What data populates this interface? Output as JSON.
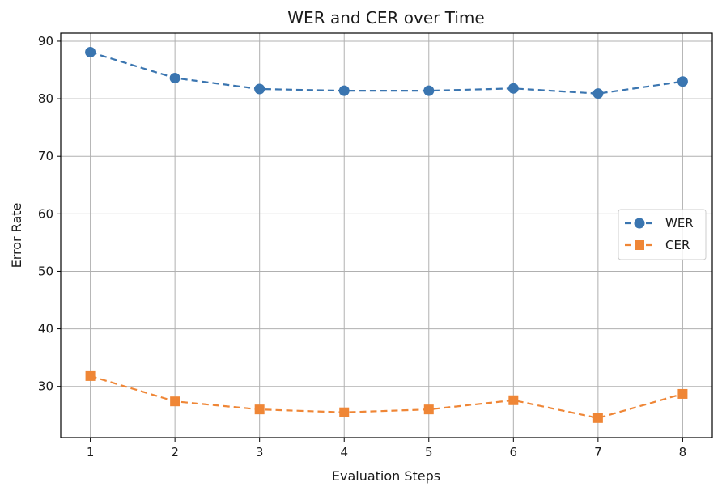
{
  "chart_data": {
    "type": "line",
    "title": "WER and CER over Time",
    "xlabel": "Evaluation Steps",
    "ylabel": "Error Rate",
    "x": [
      1,
      2,
      3,
      4,
      5,
      6,
      7,
      8
    ],
    "xticks": [
      1,
      2,
      3,
      4,
      5,
      6,
      7,
      8
    ],
    "yticks": [
      30,
      40,
      50,
      60,
      70,
      80,
      90
    ],
    "xlim": [
      0.65,
      8.35
    ],
    "ylim": [
      21.1,
      91.4
    ],
    "grid": true,
    "legend_position": "center-right",
    "series": [
      {
        "name": "WER",
        "values": [
          88.1,
          83.6,
          81.7,
          81.4,
          81.4,
          81.8,
          80.9,
          83.0
        ],
        "color": "#3a75b0",
        "marker": "circle",
        "line_style": "dashed"
      },
      {
        "name": "CER",
        "values": [
          31.8,
          27.4,
          26.0,
          25.5,
          26.0,
          27.6,
          24.5,
          28.7
        ],
        "color": "#ef8636",
        "marker": "square",
        "line_style": "dashed"
      }
    ]
  }
}
